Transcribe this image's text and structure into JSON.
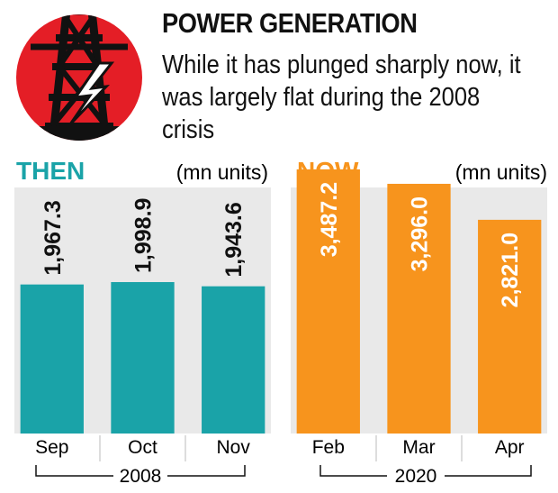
{
  "header": {
    "title": "POWER GENERATION",
    "subtitle": "While it has plunged sharply now, it was largely flat during the 2008 crisis"
  },
  "colors": {
    "then_bar": "#1aa3a8",
    "now_bar": "#f7941d",
    "then_label": "#1aa3a8",
    "now_label": "#f7941d",
    "logo_red": "#e41e26",
    "panel_bg": "#e9e9e9"
  },
  "logo": {
    "icon": "power-tower-lightning-icon"
  },
  "chart_data": [
    {
      "type": "bar",
      "panel_label": "THEN",
      "unit_label": "(mn units)",
      "categories": [
        "Sep",
        "Oct",
        "Nov"
      ],
      "values": [
        1967.3,
        1998.9,
        1943.6
      ],
      "value_labels": [
        "1,967.3",
        "1,998.9",
        "1,943.6"
      ],
      "group_label": "2008",
      "ylim": [
        0,
        3700
      ]
    },
    {
      "type": "bar",
      "panel_label": "NOW",
      "unit_label": "(mn units)",
      "categories": [
        "Feb",
        "Mar",
        "Apr"
      ],
      "values": [
        3487.2,
        3296.0,
        2821.0
      ],
      "value_labels": [
        "3,487.2",
        "3,296.0",
        "2,821.0"
      ],
      "group_label": "2020",
      "ylim": [
        0,
        3700
      ]
    }
  ]
}
